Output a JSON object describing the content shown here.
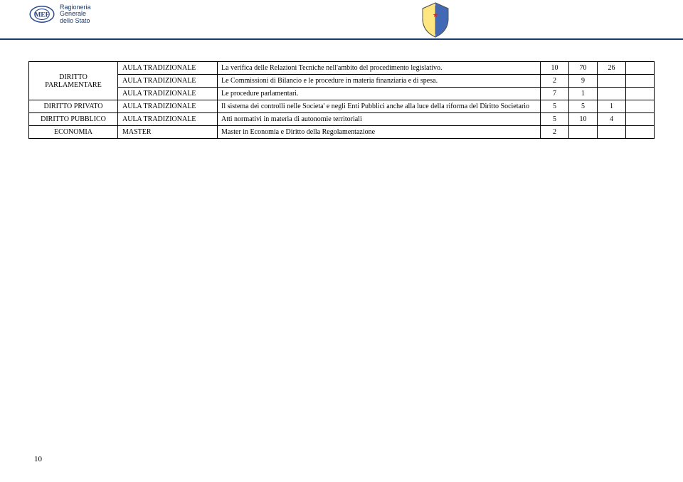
{
  "header": {
    "mef": "MEF",
    "org_line1": "Ragioneria",
    "org_line2": "Generale",
    "org_line3": "dello Stato"
  },
  "table": {
    "rows": [
      {
        "cat": "DIRITTO PARLAMENTARE",
        "cat_rowspan": 3,
        "col2": "AULA TRADIZIONALE",
        "desc": "La verifica delle Relazioni Tecniche nell'ambito del procedimento legislativo.",
        "n1": "10",
        "n2": "70",
        "n3": "26",
        "n4": ""
      },
      {
        "col2": "AULA TRADIZIONALE",
        "desc": "Le Commissioni di Bilancio e le procedure in materia finanziaria e di spesa.",
        "n1": "2",
        "n2": "9",
        "n3": "",
        "n4": ""
      },
      {
        "col2": "AULA TRADIZIONALE",
        "desc": "Le procedure parlamentari.",
        "n1": "7",
        "n2": "1",
        "n3": "",
        "n4": ""
      },
      {
        "cat": "DIRITTO PRIVATO",
        "cat_rowspan": 1,
        "col2": "AULA TRADIZIONALE",
        "desc": "Il sistema dei controlli nelle Societa' e negli Enti Pubblici anche alla luce della riforma del Diritto Societario",
        "n1": "5",
        "n2": "5",
        "n3": "1",
        "n4": ""
      },
      {
        "cat": "DIRITTO PUBBLICO",
        "cat_rowspan": 1,
        "col2": "AULA TRADIZIONALE",
        "desc": "Atti normativi in materia di autonomie territoriali",
        "n1": "5",
        "n2": "10",
        "n3": "4",
        "n4": ""
      },
      {
        "cat": "ECONOMIA",
        "cat_rowspan": 1,
        "col2": "MASTER",
        "desc": "Master in Economia e Diritto della Regolamentazione",
        "n1": "2",
        "n2": "",
        "n3": "",
        "n4": ""
      }
    ]
  },
  "page_number": "10"
}
